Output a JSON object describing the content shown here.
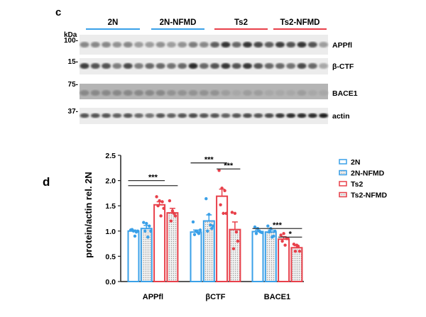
{
  "panel_c": {
    "label": "c",
    "kda_label": "kDa",
    "groups": [
      {
        "name": "2N",
        "color": "#3aa0e8"
      },
      {
        "name": "2N-NFMD",
        "color": "#3aa0e8"
      },
      {
        "name": "Ts2",
        "color": "#e8404a"
      },
      {
        "name": "Ts2-NFMD",
        "color": "#e8404a"
      }
    ],
    "blots": [
      {
        "name": "APPfl",
        "marker": "100-",
        "intensity": [
          0.45,
          0.45,
          0.45,
          0.4,
          0.45,
          0.35,
          0.35,
          0.4,
          0.35,
          0.4,
          0.5,
          0.45,
          0.65,
          0.85,
          0.6,
          0.85,
          0.75,
          0.65,
          0.8,
          0.7,
          0.85,
          0.7,
          0.35
        ]
      },
      {
        "name": "β-CTF",
        "marker": "15-",
        "intensity": [
          0.8,
          0.7,
          0.7,
          0.5,
          0.75,
          0.5,
          0.6,
          0.6,
          0.55,
          0.6,
          0.9,
          0.6,
          0.7,
          0.85,
          0.7,
          0.85,
          0.7,
          0.6,
          0.6,
          0.55,
          0.75,
          0.6,
          0.3
        ]
      },
      {
        "name": "BACE1",
        "marker": "75-",
        "intensity": [
          0.45,
          0.45,
          0.45,
          0.45,
          0.45,
          0.45,
          0.45,
          0.45,
          0.4,
          0.4,
          0.4,
          0.4,
          0.4,
          0.35,
          0.3,
          0.35,
          0.35,
          0.3,
          0.3,
          0.3,
          0.35,
          0.3,
          0.3
        ]
      },
      {
        "name": "actin",
        "marker": "37-",
        "intensity": [
          0.7,
          0.7,
          0.7,
          0.65,
          0.7,
          0.6,
          0.55,
          0.7,
          0.65,
          0.7,
          0.75,
          0.7,
          0.7,
          0.65,
          0.7,
          0.75,
          0.7,
          0.75,
          0.85,
          0.9,
          0.9,
          0.9,
          0.95
        ]
      }
    ]
  },
  "panel_d": {
    "label": "d"
  },
  "chart_data": {
    "type": "bar",
    "ylabel": "protein/actin rel. 2N",
    "ylim": [
      0,
      2.5
    ],
    "yticks": [
      "0.0",
      "0.5",
      "1.0",
      "1.5",
      "2.0",
      "2.5"
    ],
    "categories": [
      "APPfl",
      "βCTF",
      "BACE1"
    ],
    "legend_position": "right",
    "series": [
      {
        "name": "2N",
        "color": "#3aa0e8",
        "pattern": "none",
        "values": [
          1.0,
          0.98,
          0.99
        ],
        "errors": [
          0.02,
          0.04,
          0.03
        ],
        "points": [
          [
            1.02,
            1.0,
            0.98,
            1.03,
            0.9,
            1.0
          ],
          [
            1.18,
            1.0,
            0.95,
            0.93,
            0.98,
            1.02
          ],
          [
            1.08,
            1.05,
            0.98,
            0.95,
            1.0,
            0.97
          ]
        ]
      },
      {
        "name": "2N-NFMD",
        "color": "#3aa0e8",
        "pattern": "dots",
        "values": [
          1.05,
          1.2,
          0.98
        ],
        "errors": [
          0.06,
          0.12,
          0.04
        ],
        "points": [
          [
            1.17,
            1.15,
            1.1,
            1.0,
            0.88,
            1.0
          ],
          [
            1.64,
            1.33,
            1.05,
            1.0,
            1.12,
            1.1
          ],
          [
            1.1,
            1.05,
            0.9,
            0.98,
            0.88,
            1.0
          ]
        ]
      },
      {
        "name": "Ts2",
        "color": "#e8404a",
        "pattern": "none",
        "values": [
          1.52,
          1.69,
          0.84
        ],
        "errors": [
          0.06,
          0.14,
          0.05
        ],
        "points": [
          [
            1.68,
            1.6,
            1.58,
            1.5,
            1.3,
            1.45
          ],
          [
            2.2,
            1.85,
            1.8,
            1.52,
            1.35,
            1.35
          ],
          [
            0.92,
            0.95,
            0.85,
            0.8,
            0.72,
            0.85
          ]
        ]
      },
      {
        "name": "Ts2-NFMD",
        "color": "#e8404a",
        "pattern": "dots",
        "values": [
          1.36,
          1.03,
          0.67
        ],
        "errors": [
          0.09,
          0.15,
          0.04
        ],
        "points": [
          [
            1.6,
            1.4,
            1.3,
            1.2,
            1.35
          ],
          [
            1.37,
            1.35,
            0.8,
            0.65,
            0.98
          ],
          [
            0.74,
            0.72,
            0.6,
            0.6,
            0.7
          ]
        ]
      }
    ],
    "significance": [
      {
        "category": "APPfl",
        "pairs": [
          [
            "2N",
            "Ts2"
          ],
          [
            "2N",
            "Ts2-NFMD"
          ]
        ],
        "label": "***"
      },
      {
        "category": "βCTF",
        "pairs": [
          [
            "2N",
            "Ts2"
          ]
        ],
        "label": "***"
      },
      {
        "category": "βCTF",
        "pairs": [
          [
            "Ts2",
            "Ts2-NFMD"
          ]
        ],
        "label": "***"
      },
      {
        "category": "BACE1",
        "pairs": [
          [
            "2N",
            "Ts2-NFMD"
          ]
        ],
        "label": "***"
      },
      {
        "category": "BACE1",
        "pairs": [
          [
            "Ts2",
            "Ts2-NFMD"
          ]
        ],
        "label": "*"
      }
    ]
  }
}
